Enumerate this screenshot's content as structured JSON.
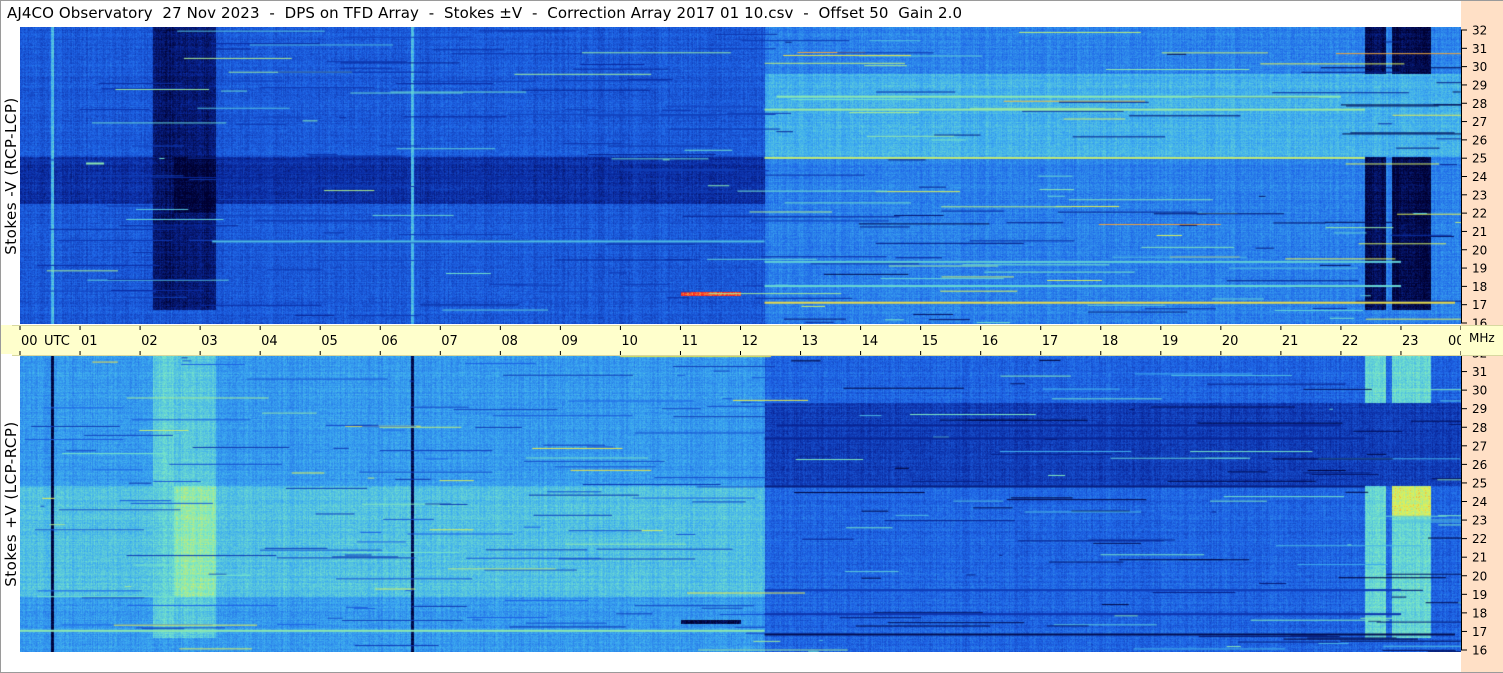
{
  "title": "AJ4CO Observatory  27 Nov 2023  -  DPS on TFD Array  -  Stokes ±V  -  Correction Array 2017 01 10.csv  -  Offset 50  Gain 2.0",
  "colors": {
    "background": "#ffffff",
    "time_bar": "#ffffcc",
    "freq_strip": "#ffe0c6",
    "colormap": [
      "#000030",
      "#0a2aa0",
      "#1e64e6",
      "#3caaf0",
      "#78e6c8",
      "#e6f050",
      "#ff2020"
    ]
  },
  "chart_data": [
    {
      "type": "heatmap",
      "name": "",
      "ylabel": "Stokes -V (RCP-LCP)",
      "x_axis": {
        "label_unit": "UTC",
        "range": [
          0,
          24
        ],
        "tick_labels": [
          "00",
          "01",
          "02",
          "03",
          "04",
          "05",
          "06",
          "07",
          "08",
          "09",
          "10",
          "11",
          "12",
          "13",
          "14",
          "15",
          "16",
          "17",
          "18",
          "19",
          "20",
          "21",
          "22",
          "23",
          "00"
        ]
      },
      "y_axis": {
        "unit": "MHz",
        "range": [
          16,
          32
        ],
        "tick_labels": [
          "32",
          "31",
          "30",
          "29",
          "28",
          "27",
          "26",
          "25",
          "24",
          "23",
          "22",
          "21",
          "20",
          "19",
          "18",
          "17",
          "16"
        ]
      },
      "bands": [
        {
          "t0": 0.0,
          "t1": 12.4,
          "f0": 16,
          "f1": 32,
          "level": 0.3
        },
        {
          "t0": 12.4,
          "t1": 24.0,
          "f0": 16,
          "f1": 32,
          "level": 0.4
        },
        {
          "t0": 0.0,
          "t1": 12.4,
          "f0": 22.5,
          "f1": 25,
          "level": 0.18
        },
        {
          "t0": 2.2,
          "t1": 2.55,
          "f0": 16.8,
          "f1": 32,
          "level": 0.08
        },
        {
          "t0": 2.55,
          "t1": 3.25,
          "f0": 16.8,
          "f1": 32,
          "level": 0.1
        },
        {
          "t0": 2.55,
          "t1": 3.25,
          "f0": 22,
          "f1": 25,
          "level": 0.02
        },
        {
          "t0": 22.4,
          "t1": 22.75,
          "f0": 16.8,
          "f1": 32,
          "level": 0.06
        },
        {
          "t0": 22.85,
          "t1": 23.5,
          "f0": 16.8,
          "f1": 32,
          "level": 0.04
        },
        {
          "t0": 12.4,
          "t1": 24.0,
          "f0": 25,
          "f1": 29.5,
          "level": 0.52
        },
        {
          "t0": 11.0,
          "t1": 12.0,
          "f0": 17.55,
          "f1": 17.75,
          "level": 0.96
        },
        {
          "t0": 0.5,
          "t1": 0.55,
          "f0": 16,
          "f1": 32,
          "level": 0.55
        },
        {
          "t0": 6.5,
          "t1": 6.55,
          "f0": 16,
          "f1": 32,
          "level": 0.55
        }
      ],
      "lines": [
        {
          "f": 25.0,
          "t0": 12.4,
          "t1": 22.4,
          "level": 0.78
        },
        {
          "f": 27.6,
          "t0": 12.4,
          "t1": 22.4,
          "level": 0.72
        },
        {
          "f": 28.3,
          "t0": 12.6,
          "t1": 22.0,
          "level": 0.7
        },
        {
          "f": 17.2,
          "t0": 12.4,
          "t1": 23.9,
          "level": 0.85
        },
        {
          "f": 18.1,
          "t0": 12.4,
          "t1": 23.0,
          "level": 0.62
        },
        {
          "f": 19.4,
          "t0": 12.4,
          "t1": 23.0,
          "level": 0.6
        },
        {
          "f": 20.5,
          "t0": 3.2,
          "t1": 12.4,
          "level": 0.55
        },
        {
          "f": 24.7,
          "t0": 1.1,
          "t1": 1.4,
          "level": 0.7
        }
      ]
    },
    {
      "type": "heatmap",
      "name": "",
      "ylabel": "Stokes +V (LCP-RCP)",
      "x_axis": {
        "label_unit": "UTC",
        "range": [
          0,
          24
        ],
        "tick_labels": [
          "00",
          "01",
          "02",
          "03",
          "04",
          "05",
          "06",
          "07",
          "08",
          "09",
          "10",
          "11",
          "12",
          "13",
          "14",
          "15",
          "16",
          "17",
          "18",
          "19",
          "20",
          "21",
          "22",
          "23",
          "00"
        ]
      },
      "y_axis": {
        "unit": "MHz",
        "range": [
          16,
          32
        ],
        "tick_labels": [
          "32",
          "31",
          "30",
          "29",
          "28",
          "27",
          "26",
          "25",
          "24",
          "23",
          "22",
          "21",
          "20",
          "19",
          "18",
          "17",
          "16"
        ]
      },
      "bands": [
        {
          "t0": 0.0,
          "t1": 12.4,
          "f0": 16,
          "f1": 32,
          "level": 0.46
        },
        {
          "t0": 12.4,
          "t1": 24.0,
          "f0": 16,
          "f1": 32,
          "level": 0.33
        },
        {
          "t0": 0.0,
          "t1": 12.4,
          "f0": 19,
          "f1": 25,
          "level": 0.56
        },
        {
          "t0": 2.2,
          "t1": 2.55,
          "f0": 16.8,
          "f1": 32,
          "level": 0.6
        },
        {
          "t0": 2.55,
          "t1": 3.25,
          "f0": 16.8,
          "f1": 32,
          "level": 0.58
        },
        {
          "t0": 2.55,
          "t1": 3.25,
          "f0": 19,
          "f1": 25,
          "level": 0.7
        },
        {
          "t0": 22.4,
          "t1": 22.75,
          "f0": 16.8,
          "f1": 32,
          "level": 0.62
        },
        {
          "t0": 22.85,
          "t1": 23.5,
          "f0": 16.8,
          "f1": 32,
          "level": 0.62
        },
        {
          "t0": 22.85,
          "t1": 23.5,
          "f0": 23.3,
          "f1": 25,
          "level": 0.8
        },
        {
          "t0": 12.4,
          "t1": 24.0,
          "f0": 25,
          "f1": 29.5,
          "level": 0.22
        },
        {
          "t0": 11.0,
          "t1": 12.0,
          "f0": 17.55,
          "f1": 17.75,
          "level": 0.04
        },
        {
          "t0": 0.5,
          "t1": 0.55,
          "f0": 16,
          "f1": 32,
          "level": 0.03
        },
        {
          "t0": 6.5,
          "t1": 6.55,
          "f0": 16,
          "f1": 32,
          "level": 0.03
        }
      ],
      "lines": [
        {
          "f": 25.0,
          "t0": 12.4,
          "t1": 22.4,
          "level": 0.12
        },
        {
          "f": 27.6,
          "t0": 12.4,
          "t1": 22.4,
          "level": 0.15
        },
        {
          "f": 28.3,
          "t0": 12.6,
          "t1": 22.0,
          "level": 0.15
        },
        {
          "f": 17.0,
          "t0": 12.4,
          "t1": 23.9,
          "level": 0.05
        },
        {
          "f": 18.1,
          "t0": 12.4,
          "t1": 23.0,
          "level": 0.2
        },
        {
          "f": 19.4,
          "t0": 12.4,
          "t1": 23.0,
          "level": 0.22
        },
        {
          "f": 17.2,
          "t0": 0.0,
          "t1": 12.4,
          "level": 0.7
        }
      ]
    }
  ]
}
